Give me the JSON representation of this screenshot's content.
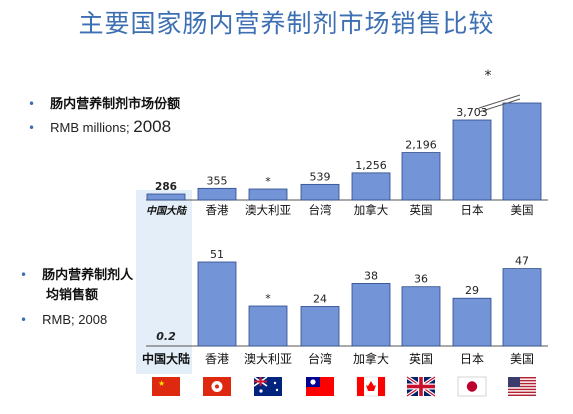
{
  "title": "主要国家肠内营养制剂市场销售比较",
  "top_bullets": {
    "line1": "肠内营养制剂市场份额",
    "line2_text": "RMB millions; ",
    "line2_year": "2008",
    "asterisk_top": "*"
  },
  "bottom_bullets": {
    "line1": "肠内营养制剂人",
    "line1b": "均销售额",
    "line2": "RMB; 2008"
  },
  "flags": [
    "china-flag-icon",
    "hongkong-flag-icon",
    "australia-flag-icon",
    "taiwan-flag-icon",
    "canada-flag-icon",
    "uk-flag-icon",
    "japan-flag-icon",
    "usa-flag-icon"
  ],
  "colors": {
    "bar": "#7394d6",
    "bar_stroke": "#2b4a8a",
    "highlight": "#e3eef9",
    "title": "#3d6fb3"
  },
  "chart_data": [
    {
      "type": "bar",
      "categories": [
        "中国大陆",
        "香港",
        "澳大利亚",
        "台湾",
        "加拿大",
        "英国",
        "日本",
        "美国"
      ],
      "values": [
        286,
        355,
        null,
        539,
        1256,
        2196,
        3703,
        null
      ],
      "value_labels": [
        "286",
        "355",
        "*",
        "539",
        "1,256",
        "2,196",
        "3,703",
        ""
      ],
      "note": "*",
      "title": ""
    },
    {
      "type": "bar",
      "categories": [
        "中国大陆",
        "香港",
        "澳大利亚",
        "台湾",
        "加拿大",
        "英国",
        "日本",
        "美国"
      ],
      "values": [
        0.2,
        51,
        null,
        24,
        38,
        36,
        29,
        47
      ],
      "value_labels": [
        "0.2",
        "51",
        "*",
        "24",
        "38",
        "36",
        "29",
        "47"
      ],
      "ylim": [
        0,
        51
      ],
      "title": ""
    }
  ]
}
